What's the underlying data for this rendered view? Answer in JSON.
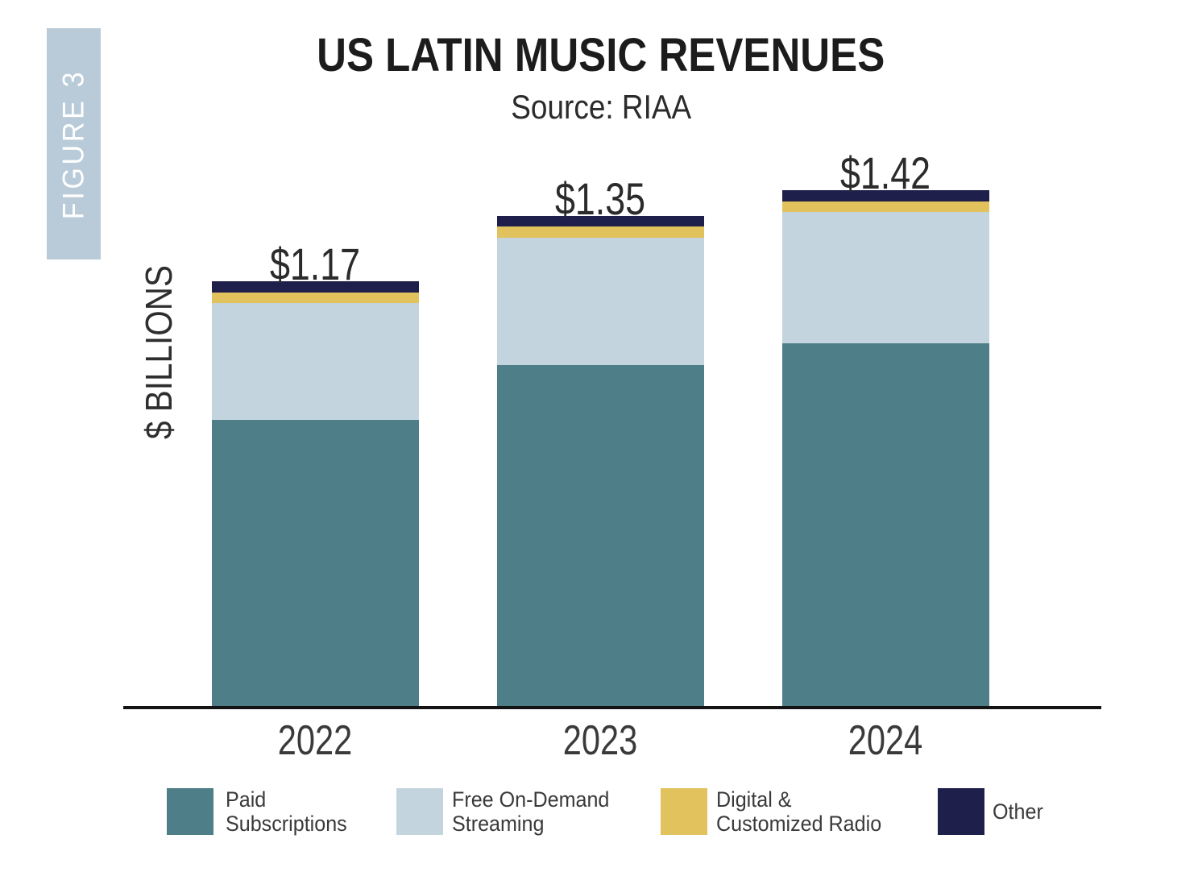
{
  "figure_label": "FIGURE 3",
  "title": "US LATIN MUSIC REVENUES",
  "subtitle": "Source: RIAA",
  "y_axis_label": "$ BILLIONS",
  "colors": {
    "paid_subscriptions": "#4E7E87",
    "free_on_demand": "#C3D4DF",
    "digital_radio": "#E2C25C",
    "other": "#1E1F4B",
    "figure_banner_bg": "#B9CBD8",
    "axis_line": "#141414"
  },
  "chart_data": {
    "type": "bar",
    "stacked": true,
    "title": "US LATIN MUSIC REVENUES",
    "subtitle": "Source: RIAA",
    "ylabel": "$ BILLIONS",
    "xlabel": "",
    "units": "USD billions",
    "grid": false,
    "legend_position": "bottom",
    "categories": [
      "2022",
      "2023",
      "2024"
    ],
    "series": [
      {
        "name": "Paid Subscriptions",
        "color": "#4E7E87",
        "values": [
          0.79,
          0.94,
          1.0
        ]
      },
      {
        "name": "Free On-Demand Streaming",
        "color": "#C3D4DF",
        "values": [
          0.32,
          0.35,
          0.36
        ]
      },
      {
        "name": "Digital & Customized Radio",
        "color": "#E2C25C",
        "values": [
          0.03,
          0.03,
          0.03
        ]
      },
      {
        "name": "Other",
        "color": "#1E1F4B",
        "values": [
          0.03,
          0.03,
          0.03
        ]
      }
    ],
    "totals": [
      1.17,
      1.35,
      1.42
    ],
    "total_labels": [
      "$1.17",
      "$1.35",
      "$1.42"
    ],
    "ylim": [
      0,
      1.5
    ]
  },
  "legend": {
    "items": [
      {
        "key": "paid_subscriptions",
        "color": "#4E7E87",
        "lines": [
          "Paid",
          "Subscriptions"
        ]
      },
      {
        "key": "free_on_demand",
        "color": "#C3D4DF",
        "lines": [
          "Free On-Demand",
          "Streaming"
        ]
      },
      {
        "key": "digital_radio",
        "color": "#E2C25C",
        "lines": [
          "Digital &",
          "Customized Radio"
        ]
      },
      {
        "key": "other",
        "color": "#1E1F4B",
        "lines": [
          "Other"
        ]
      }
    ]
  }
}
